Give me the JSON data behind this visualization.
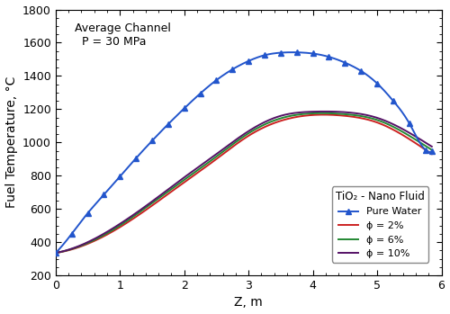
{
  "title_annotation": "Average Channel\n  P = 30 MPa",
  "xlabel": "Z, m",
  "ylabel": "Fuel Temperature, °C",
  "xlim": [
    0,
    6
  ],
  "ylim": [
    200,
    1800
  ],
  "yticks": [
    200,
    400,
    600,
    800,
    1000,
    1200,
    1400,
    1600,
    1800
  ],
  "xticks": [
    0,
    1,
    2,
    3,
    4,
    5,
    6
  ],
  "legend_title": "TiO₂ - Nano Fluid",
  "pure_water": {
    "label": "Pure Water",
    "color": "#2255cc",
    "marker": "^",
    "markersize": 5,
    "z": [
      0.0,
      0.25,
      0.5,
      0.75,
      1.0,
      1.25,
      1.5,
      1.75,
      2.0,
      2.25,
      2.5,
      2.75,
      3.0,
      3.25,
      3.5,
      3.75,
      4.0,
      4.25,
      4.5,
      4.75,
      5.0,
      5.25,
      5.5,
      5.75,
      5.85
    ],
    "T": [
      335,
      450,
      575,
      685,
      795,
      905,
      1010,
      1110,
      1205,
      1295,
      1375,
      1440,
      1490,
      1525,
      1540,
      1542,
      1535,
      1515,
      1480,
      1430,
      1355,
      1250,
      1115,
      955,
      945
    ]
  },
  "phi2": {
    "label": "ϕ = 2%",
    "color": "#cc2222",
    "z": [
      0.0,
      0.5,
      1.0,
      1.5,
      2.0,
      2.5,
      3.0,
      3.5,
      4.0,
      4.5,
      5.0,
      5.5,
      5.85
    ],
    "T": [
      335,
      390,
      490,
      620,
      760,
      900,
      1040,
      1130,
      1165,
      1160,
      1120,
      1020,
      930
    ]
  },
  "phi6": {
    "label": "ϕ = 6%",
    "color": "#228833",
    "z": [
      0.0,
      0.5,
      1.0,
      1.5,
      2.0,
      2.5,
      3.0,
      3.5,
      4.0,
      4.5,
      5.0,
      5.5,
      5.85
    ],
    "T": [
      335,
      395,
      500,
      635,
      775,
      915,
      1055,
      1145,
      1175,
      1170,
      1135,
      1040,
      955
    ]
  },
  "phi10": {
    "label": "ϕ = 10%",
    "color": "#551166",
    "z": [
      0.0,
      0.5,
      1.0,
      1.5,
      2.0,
      2.5,
      3.0,
      3.5,
      4.0,
      4.5,
      5.0,
      5.5,
      5.85
    ],
    "T": [
      335,
      400,
      510,
      645,
      790,
      930,
      1068,
      1160,
      1185,
      1182,
      1148,
      1058,
      975
    ]
  },
  "background_color": "#ffffff"
}
